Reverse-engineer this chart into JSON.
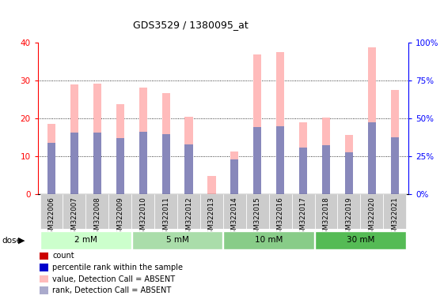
{
  "title": "GDS3529 / 1380095_at",
  "samples": [
    "GSM322006",
    "GSM322007",
    "GSM322008",
    "GSM322009",
    "GSM322010",
    "GSM322011",
    "GSM322012",
    "GSM322013",
    "GSM322014",
    "GSM322015",
    "GSM322016",
    "GSM322017",
    "GSM322018",
    "GSM322019",
    "GSM322020",
    "GSM322021"
  ],
  "pink_bars": [
    18.5,
    29.0,
    29.2,
    23.8,
    28.0,
    26.7,
    20.3,
    4.7,
    11.3,
    36.8,
    37.4,
    19.0,
    20.1,
    15.6,
    38.6,
    27.5
  ],
  "blue_bars": [
    13.5,
    16.2,
    16.1,
    14.8,
    16.5,
    15.8,
    13.0,
    0.0,
    9.2,
    17.6,
    17.8,
    12.2,
    12.8,
    11.0,
    19.0,
    15.0
  ],
  "dose_groups": [
    {
      "label": "2 mM",
      "start": 0,
      "end": 4
    },
    {
      "label": "5 mM",
      "start": 4,
      "end": 8
    },
    {
      "label": "10 mM",
      "start": 8,
      "end": 12
    },
    {
      "label": "30 mM",
      "start": 12,
      "end": 16
    }
  ],
  "dose_colors": [
    "#ccffcc",
    "#aaddaa",
    "#88cc88",
    "#55bb55"
  ],
  "ylim_left": [
    0,
    40
  ],
  "ylim_right": [
    0,
    100
  ],
  "yticks_left": [
    0,
    10,
    20,
    30,
    40
  ],
  "yticks_right": [
    0,
    25,
    50,
    75,
    100
  ],
  "left_axis_color": "red",
  "right_axis_color": "blue",
  "pink_color": "#ffbbbb",
  "blue_color": "#8888bb",
  "bar_width": 0.35,
  "legend_items": [
    {
      "color": "#cc0000",
      "label": "count"
    },
    {
      "color": "#0000cc",
      "label": "percentile rank within the sample"
    },
    {
      "color": "#ffbbbb",
      "label": "value, Detection Call = ABSENT"
    },
    {
      "color": "#aaaacc",
      "label": "rank, Detection Call = ABSENT"
    }
  ]
}
